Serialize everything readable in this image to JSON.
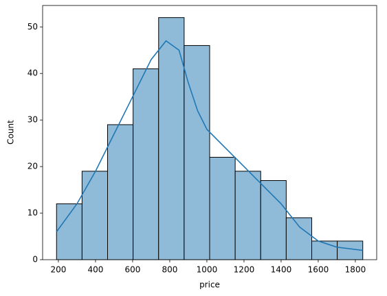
{
  "chart_data": {
    "type": "histogram",
    "xlabel": "price",
    "ylabel": "Count",
    "bins": [
      190,
      327.5,
      465,
      602.5,
      740,
      877.5,
      1015,
      1152.5,
      1290,
      1427.5,
      1565,
      1702.5,
      1840
    ],
    "counts": [
      12,
      19,
      29,
      41,
      52,
      46,
      22,
      19,
      17,
      9,
      4,
      4
    ],
    "color": "#8fbbd9",
    "edgecolor": "#000000",
    "kde": {
      "color": "#1f77b4",
      "x": [
        190,
        300,
        400,
        500,
        600,
        700,
        780,
        850,
        900,
        950,
        1000,
        1100,
        1200,
        1300,
        1400,
        1500,
        1600,
        1700,
        1840
      ],
      "values": [
        6,
        12,
        19,
        27,
        35,
        43,
        47,
        45,
        38,
        32,
        28,
        24,
        20,
        16,
        12,
        7,
        4,
        2.7,
        2
      ]
    },
    "xlim": [
      115,
      1915
    ],
    "ylim": [
      0,
      54.6
    ],
    "xticks": [
      200,
      400,
      600,
      800,
      1000,
      1200,
      1400,
      1600,
      1800
    ],
    "yticks": [
      0,
      10,
      20,
      30,
      40,
      50
    ]
  }
}
